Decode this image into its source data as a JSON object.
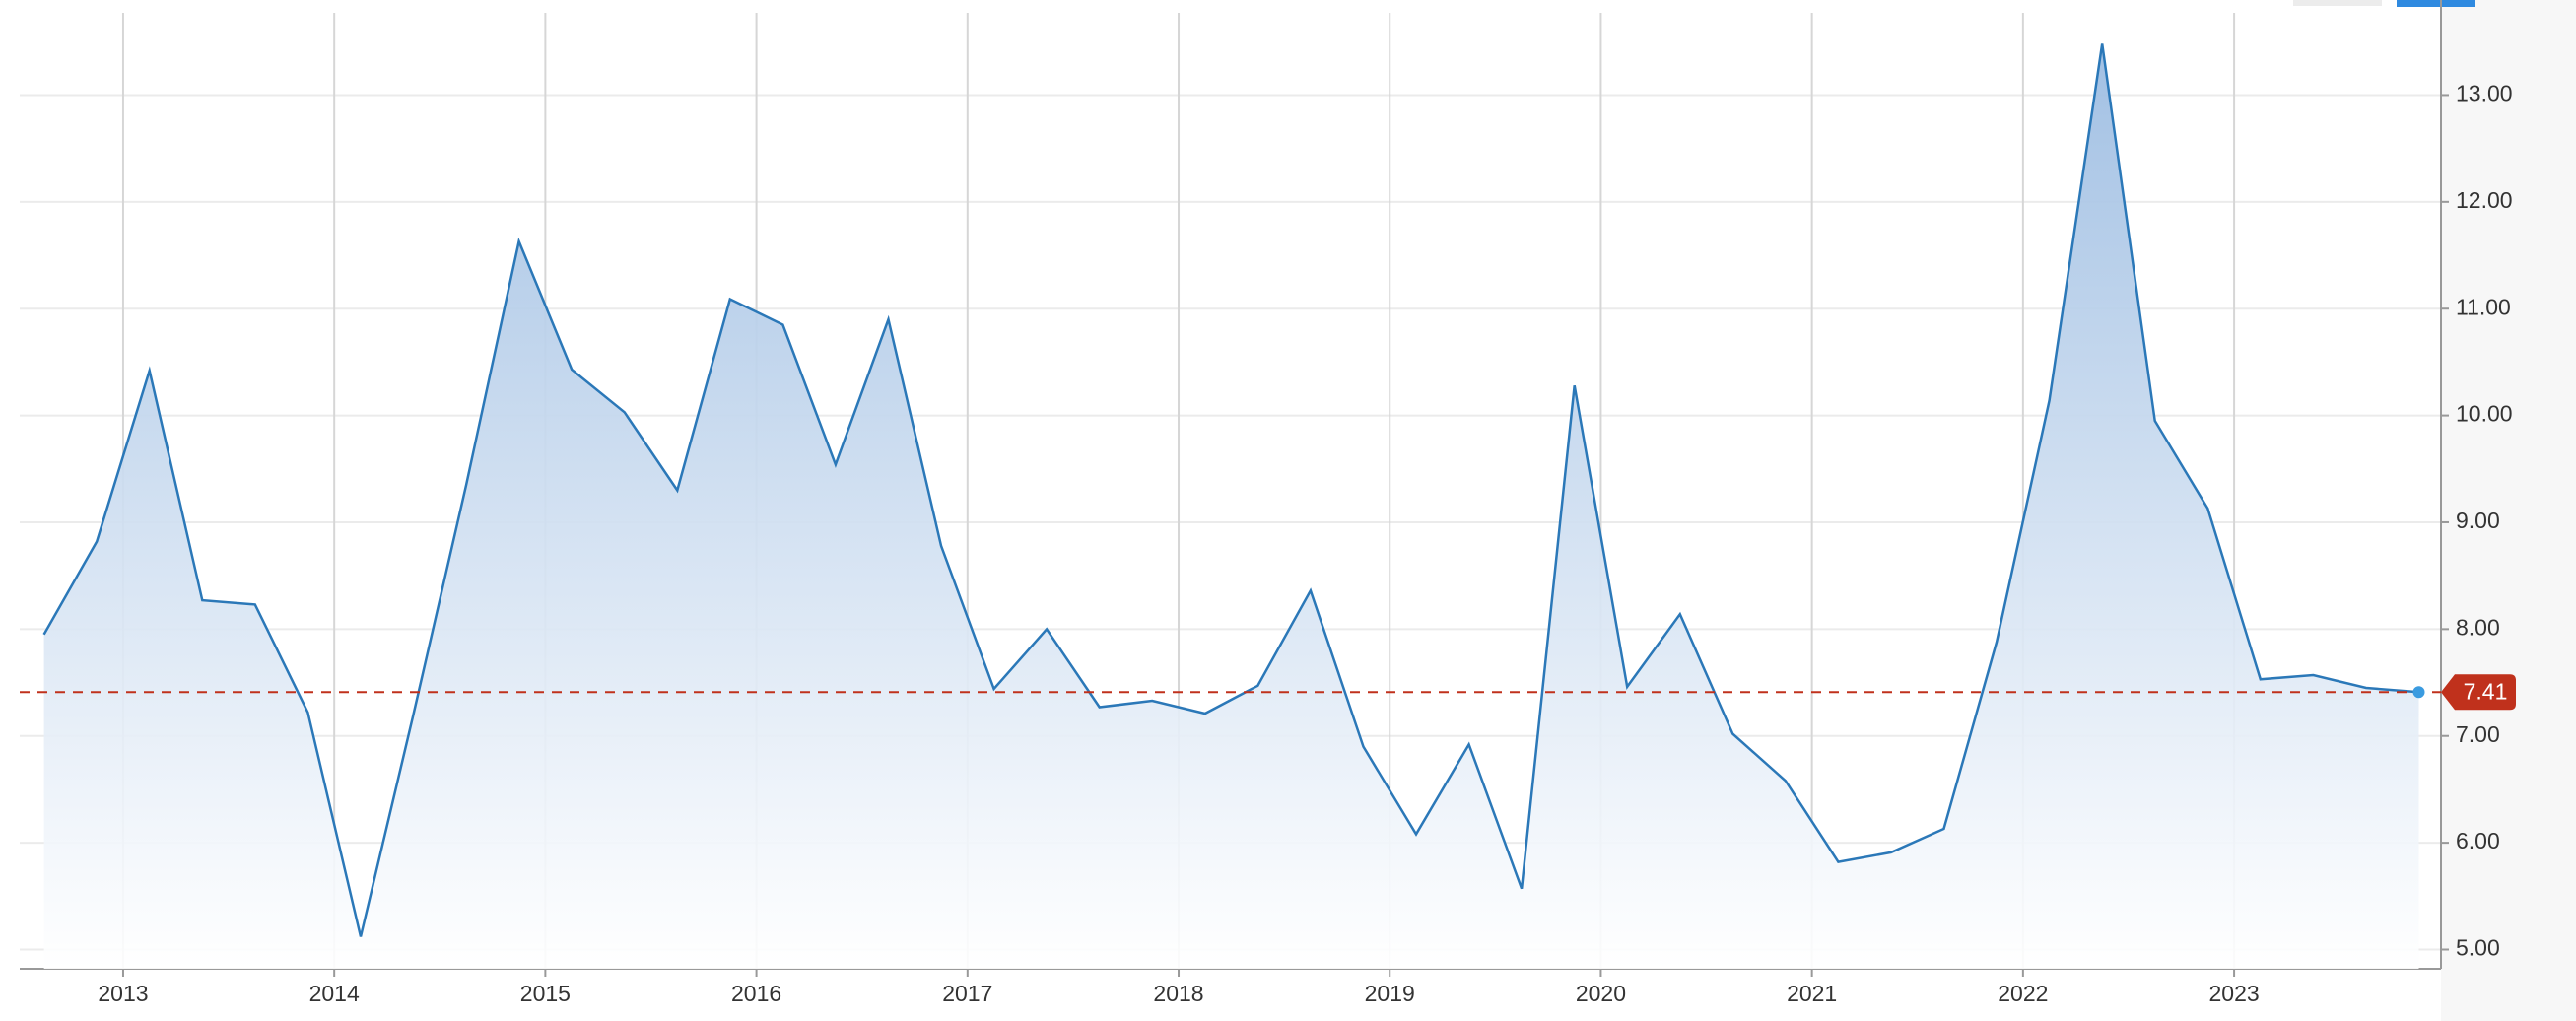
{
  "chart_data": {
    "type": "area",
    "x": [
      2012.625,
      2012.875,
      2013.125,
      2013.375,
      2013.625,
      2013.875,
      2014.125,
      2014.375,
      2014.625,
      2014.875,
      2015.125,
      2015.375,
      2015.625,
      2015.875,
      2016.125,
      2016.375,
      2016.625,
      2016.875,
      2017.125,
      2017.375,
      2017.625,
      2017.875,
      2018.125,
      2018.375,
      2018.625,
      2018.875,
      2019.125,
      2019.375,
      2019.625,
      2019.875,
      2020.125,
      2020.375,
      2020.625,
      2020.875,
      2021.125,
      2021.375,
      2021.625,
      2021.875,
      2022.125,
      2022.375,
      2022.625,
      2022.875,
      2023.125,
      2023.375,
      2023.625,
      2023.875
    ],
    "values": [
      7.95,
      8.82,
      10.42,
      8.27,
      8.23,
      7.22,
      5.12,
      7.2,
      9.35,
      11.63,
      10.43,
      10.03,
      9.3,
      11.09,
      10.85,
      9.54,
      10.9,
      8.78,
      7.44,
      8.0,
      7.27,
      7.33,
      7.21,
      7.47,
      8.36,
      6.9,
      6.08,
      6.92,
      5.57,
      10.28,
      7.46,
      8.14,
      7.02,
      6.58,
      5.82,
      5.91,
      6.13,
      7.88,
      10.14,
      13.48,
      9.95,
      9.13,
      7.53,
      7.57,
      7.45,
      7.41
    ],
    "color": "#2b78b8",
    "xlim": [
      2012.51,
      2023.98
    ],
    "xticks": [
      2013,
      2014,
      2015,
      2016,
      2017,
      2018,
      2019,
      2020,
      2021,
      2022,
      2023
    ],
    "ylim": [
      4.82,
      13.77
    ],
    "yticks": [
      {
        "value": 5,
        "label": "5.00"
      },
      {
        "value": 6,
        "label": "6.00"
      },
      {
        "value": 7,
        "label": "7.00"
      },
      {
        "value": 8,
        "label": "8.00"
      },
      {
        "value": 9,
        "label": "9.00"
      },
      {
        "value": 10,
        "label": "10.00"
      },
      {
        "value": 11,
        "label": "11.00"
      },
      {
        "value": 12,
        "label": "12.00"
      },
      {
        "value": 13,
        "label": "13.00"
      }
    ],
    "grid": true,
    "last_value_color": "#c0311c"
  }
}
